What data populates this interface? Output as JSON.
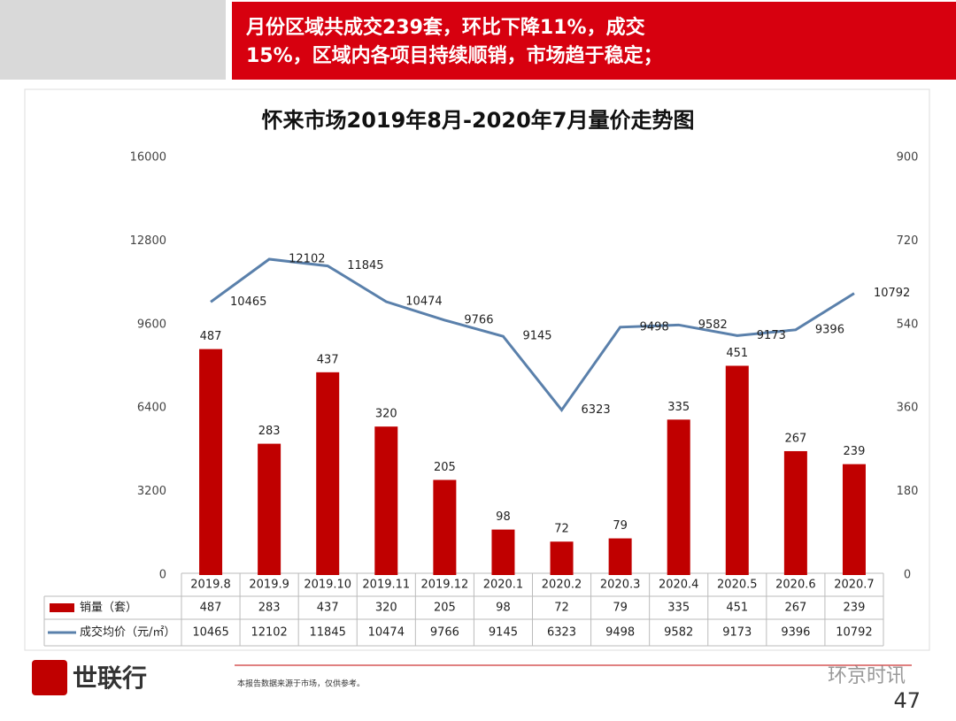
{
  "header": {
    "lines": [
      "月份区域共成交239套，环比下降11%，成交",
      "15%，区域内各项目持续顺销，市场趋于稳定；"
    ]
  },
  "chart_data": {
    "type": "combo",
    "title": "怀来市场2019年8月-2020年7月量价走势图",
    "categories": [
      "2019.8",
      "2019.9",
      "2019.10",
      "2019.11",
      "2019.12",
      "2020.1",
      "2020.2",
      "2020.3",
      "2020.4",
      "2020.5",
      "2020.6",
      "2020.7"
    ],
    "series": [
      {
        "name": "销量（套）",
        "type": "bar",
        "axis": "y2",
        "color": "#c00000",
        "values": [
          487,
          283,
          437,
          320,
          205,
          98,
          72,
          79,
          335,
          451,
          267,
          239
        ]
      },
      {
        "name": "成交均价（元/㎡）",
        "type": "line",
        "color": "#5a80ab",
        "values": [
          10465,
          12102,
          11845,
          10474,
          9766,
          9145,
          6323,
          9498,
          9582,
          9173,
          9396,
          10792
        ]
      }
    ],
    "ylim": [
      0,
      16000
    ],
    "yticks": [
      0,
      3200,
      6400,
      9600,
      12800,
      16000
    ],
    "y2lim": [
      0,
      900
    ],
    "y2ticks": [
      0,
      180,
      360,
      540,
      720,
      900
    ],
    "grid": false
  },
  "footer": {
    "brand": "世联行",
    "note": "本报告数据来源于市场，仅供参考。",
    "watermark": "环京时讯",
    "page": "47"
  }
}
